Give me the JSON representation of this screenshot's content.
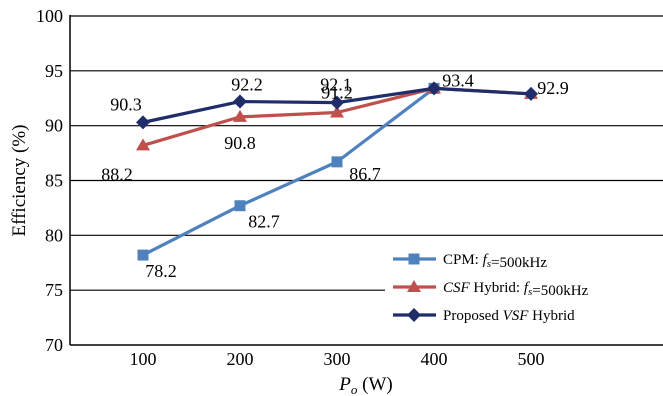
{
  "chart_data": {
    "type": "line",
    "title": "",
    "xlabel": {
      "main": "P",
      "sub": "o",
      "unit": " (W)"
    },
    "ylabel": "Efficiency (%)",
    "x": [
      100,
      200,
      300,
      400,
      500
    ],
    "x_tick_labels": [
      "100",
      "200",
      "300",
      "400",
      "500"
    ],
    "ylim": [
      70,
      100
    ],
    "y_ticks": [
      70,
      75,
      80,
      85,
      90,
      95,
      100
    ],
    "y_tick_labels": [
      "70",
      "75",
      "80",
      "85",
      "90",
      "95",
      "100"
    ],
    "grid": "horizontal",
    "legend_position": "bottom-right",
    "series": [
      {
        "key": "cpm",
        "name": "CPM: fs=500kHz",
        "legend_parts": [
          {
            "text": "CPM: ",
            "italic": false,
            "sub": false
          },
          {
            "text": "f",
            "italic": true,
            "sub": false
          },
          {
            "text": "s",
            "italic": true,
            "sub": true
          },
          {
            "text": "=500kHz",
            "italic": false,
            "sub": false
          }
        ],
        "color": "#4f81bd",
        "marker": "square",
        "x": [
          100,
          200,
          300,
          400
        ],
        "values": [
          78.2,
          82.7,
          86.7,
          93.4
        ],
        "labels": [
          "78.2",
          "82.7",
          "86.7",
          ""
        ]
      },
      {
        "key": "csf",
        "name": "CSF Hybrid: fs=500kHz",
        "legend_parts": [
          {
            "text": "CSF",
            "italic": true,
            "sub": false
          },
          {
            "text": " Hybrid: ",
            "italic": false,
            "sub": false
          },
          {
            "text": "f",
            "italic": true,
            "sub": false
          },
          {
            "text": "s",
            "italic": true,
            "sub": true
          },
          {
            "text": "=500kHz",
            "italic": false,
            "sub": false
          }
        ],
        "color": "#c0504d",
        "marker": "triangle",
        "x": [
          100,
          200,
          300,
          400,
          500
        ],
        "values": [
          88.2,
          90.8,
          91.2,
          93.4,
          92.9
        ],
        "labels": [
          "88.2",
          "90.8",
          "91.2",
          "",
          ""
        ]
      },
      {
        "key": "vsf",
        "name": "Proposed VSF Hybrid",
        "legend_parts": [
          {
            "text": "Proposed ",
            "italic": false,
            "sub": false
          },
          {
            "text": "VSF",
            "italic": true,
            "sub": false
          },
          {
            "text": " Hybrid",
            "italic": false,
            "sub": false
          }
        ],
        "color": "#1f2d6b",
        "marker": "diamond",
        "x": [
          100,
          200,
          300,
          400,
          500
        ],
        "values": [
          90.3,
          92.2,
          92.1,
          93.4,
          92.9
        ],
        "labels": [
          "90.3",
          "92.2",
          "92.1",
          "93.4",
          "92.9"
        ]
      }
    ]
  }
}
